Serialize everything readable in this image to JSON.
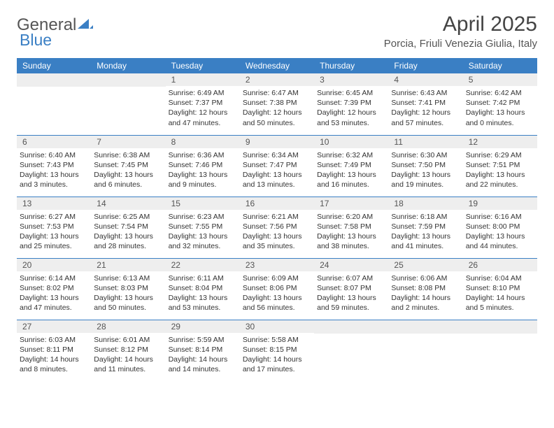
{
  "brand": {
    "part1": "General",
    "part2": "Blue"
  },
  "title": "April 2025",
  "location": "Porcia, Friuli Venezia Giulia, Italy",
  "colors": {
    "header_bg": "#3a7fc4",
    "header_text": "#ffffff",
    "daynum_bg": "#eeeeee",
    "border": "#3a7fc4",
    "body_text": "#333333"
  },
  "dayNames": [
    "Sunday",
    "Monday",
    "Tuesday",
    "Wednesday",
    "Thursday",
    "Friday",
    "Saturday"
  ],
  "weeks": [
    [
      null,
      null,
      {
        "n": "1",
        "sr": "6:49 AM",
        "ss": "7:37 PM",
        "dl": "12 hours and 47 minutes."
      },
      {
        "n": "2",
        "sr": "6:47 AM",
        "ss": "7:38 PM",
        "dl": "12 hours and 50 minutes."
      },
      {
        "n": "3",
        "sr": "6:45 AM",
        "ss": "7:39 PM",
        "dl": "12 hours and 53 minutes."
      },
      {
        "n": "4",
        "sr": "6:43 AM",
        "ss": "7:41 PM",
        "dl": "12 hours and 57 minutes."
      },
      {
        "n": "5",
        "sr": "6:42 AM",
        "ss": "7:42 PM",
        "dl": "13 hours and 0 minutes."
      }
    ],
    [
      {
        "n": "6",
        "sr": "6:40 AM",
        "ss": "7:43 PM",
        "dl": "13 hours and 3 minutes."
      },
      {
        "n": "7",
        "sr": "6:38 AM",
        "ss": "7:45 PM",
        "dl": "13 hours and 6 minutes."
      },
      {
        "n": "8",
        "sr": "6:36 AM",
        "ss": "7:46 PM",
        "dl": "13 hours and 9 minutes."
      },
      {
        "n": "9",
        "sr": "6:34 AM",
        "ss": "7:47 PM",
        "dl": "13 hours and 13 minutes."
      },
      {
        "n": "10",
        "sr": "6:32 AM",
        "ss": "7:49 PM",
        "dl": "13 hours and 16 minutes."
      },
      {
        "n": "11",
        "sr": "6:30 AM",
        "ss": "7:50 PM",
        "dl": "13 hours and 19 minutes."
      },
      {
        "n": "12",
        "sr": "6:29 AM",
        "ss": "7:51 PM",
        "dl": "13 hours and 22 minutes."
      }
    ],
    [
      {
        "n": "13",
        "sr": "6:27 AM",
        "ss": "7:53 PM",
        "dl": "13 hours and 25 minutes."
      },
      {
        "n": "14",
        "sr": "6:25 AM",
        "ss": "7:54 PM",
        "dl": "13 hours and 28 minutes."
      },
      {
        "n": "15",
        "sr": "6:23 AM",
        "ss": "7:55 PM",
        "dl": "13 hours and 32 minutes."
      },
      {
        "n": "16",
        "sr": "6:21 AM",
        "ss": "7:56 PM",
        "dl": "13 hours and 35 minutes."
      },
      {
        "n": "17",
        "sr": "6:20 AM",
        "ss": "7:58 PM",
        "dl": "13 hours and 38 minutes."
      },
      {
        "n": "18",
        "sr": "6:18 AM",
        "ss": "7:59 PM",
        "dl": "13 hours and 41 minutes."
      },
      {
        "n": "19",
        "sr": "6:16 AM",
        "ss": "8:00 PM",
        "dl": "13 hours and 44 minutes."
      }
    ],
    [
      {
        "n": "20",
        "sr": "6:14 AM",
        "ss": "8:02 PM",
        "dl": "13 hours and 47 minutes."
      },
      {
        "n": "21",
        "sr": "6:13 AM",
        "ss": "8:03 PM",
        "dl": "13 hours and 50 minutes."
      },
      {
        "n": "22",
        "sr": "6:11 AM",
        "ss": "8:04 PM",
        "dl": "13 hours and 53 minutes."
      },
      {
        "n": "23",
        "sr": "6:09 AM",
        "ss": "8:06 PM",
        "dl": "13 hours and 56 minutes."
      },
      {
        "n": "24",
        "sr": "6:07 AM",
        "ss": "8:07 PM",
        "dl": "13 hours and 59 minutes."
      },
      {
        "n": "25",
        "sr": "6:06 AM",
        "ss": "8:08 PM",
        "dl": "14 hours and 2 minutes."
      },
      {
        "n": "26",
        "sr": "6:04 AM",
        "ss": "8:10 PM",
        "dl": "14 hours and 5 minutes."
      }
    ],
    [
      {
        "n": "27",
        "sr": "6:03 AM",
        "ss": "8:11 PM",
        "dl": "14 hours and 8 minutes."
      },
      {
        "n": "28",
        "sr": "6:01 AM",
        "ss": "8:12 PM",
        "dl": "14 hours and 11 minutes."
      },
      {
        "n": "29",
        "sr": "5:59 AM",
        "ss": "8:14 PM",
        "dl": "14 hours and 14 minutes."
      },
      {
        "n": "30",
        "sr": "5:58 AM",
        "ss": "8:15 PM",
        "dl": "14 hours and 17 minutes."
      },
      null,
      null,
      null
    ]
  ],
  "labels": {
    "sunrise": "Sunrise:",
    "sunset": "Sunset:",
    "daylight": "Daylight:"
  }
}
